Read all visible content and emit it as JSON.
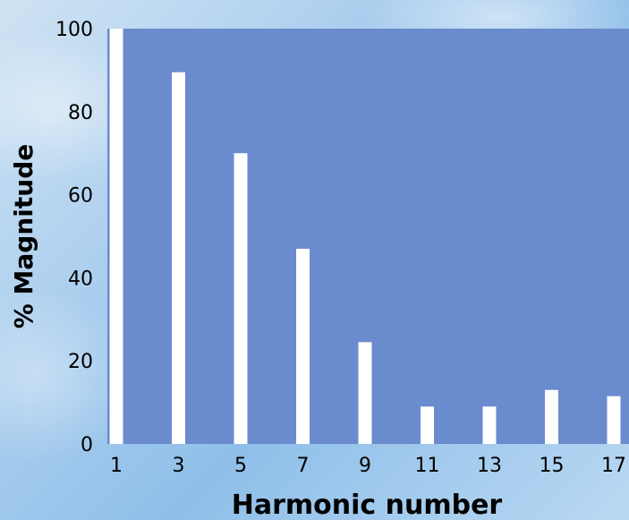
{
  "chart_data": {
    "type": "bar",
    "xlabel": "Harmonic number",
    "ylabel": "% Magnitude",
    "categories": [
      "1",
      "3",
      "5",
      "7",
      "9",
      "11",
      "13",
      "15",
      "17"
    ],
    "values": [
      100,
      89.5,
      70,
      47,
      24.5,
      9,
      9,
      13,
      11.5
    ],
    "ylim": [
      0,
      100
    ],
    "yticks": [
      "0",
      "20",
      "40",
      "60",
      "80",
      "100"
    ],
    "grid": false,
    "colors": {
      "plot_background": "#6a8bcd",
      "bar": "#ffffff"
    }
  }
}
